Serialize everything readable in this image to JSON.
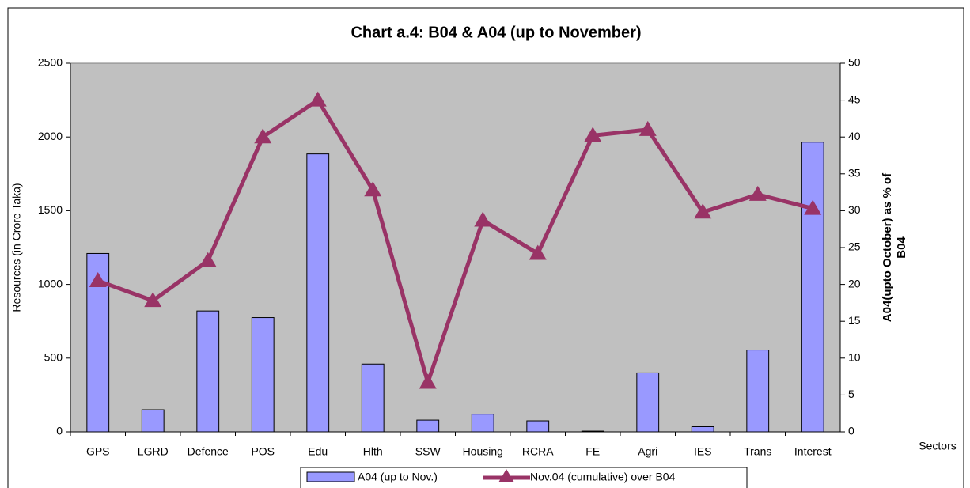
{
  "chart_data": {
    "type": "bar",
    "title": "Chart a.4: B04 & A04 (up to November)",
    "y_label": "Resources (in Crore Taka)",
    "y2_label": [
      "A04(upto October) as % of",
      "B04"
    ],
    "annotation": "Sectors",
    "categories": [
      "GPS",
      "LGRD",
      "Defence",
      "POS",
      "Edu",
      "Hlth",
      "SSW",
      "Housing",
      "RCRA",
      "FE",
      "Agri",
      "IES",
      "Trans",
      "Interest"
    ],
    "series": [
      {
        "name": "A04 (up to Nov.)",
        "type": "bar",
        "color": "#9999ff",
        "values": [
          1210,
          150,
          820,
          775,
          1885,
          460,
          80,
          120,
          75,
          5,
          400,
          35,
          555,
          1965
        ]
      },
      {
        "name": "Nov.04 (cumulative) over B04",
        "type": "line",
        "axis": "y2",
        "color": "#993366",
        "values": [
          20.5,
          17.8,
          23.2,
          40,
          45,
          32.8,
          6.7,
          28.7,
          24.2,
          40.2,
          41,
          29.8,
          32.2,
          30.3
        ]
      }
    ],
    "ylim": [
      0,
      2500
    ],
    "yticks": [
      0,
      500,
      1000,
      1500,
      2000,
      2500
    ],
    "y2lim": [
      0,
      50
    ],
    "y2ticks": [
      0,
      5,
      10,
      15,
      20,
      25,
      30,
      35,
      40,
      45,
      50
    ],
    "plot_background": "#c0c0c0"
  }
}
